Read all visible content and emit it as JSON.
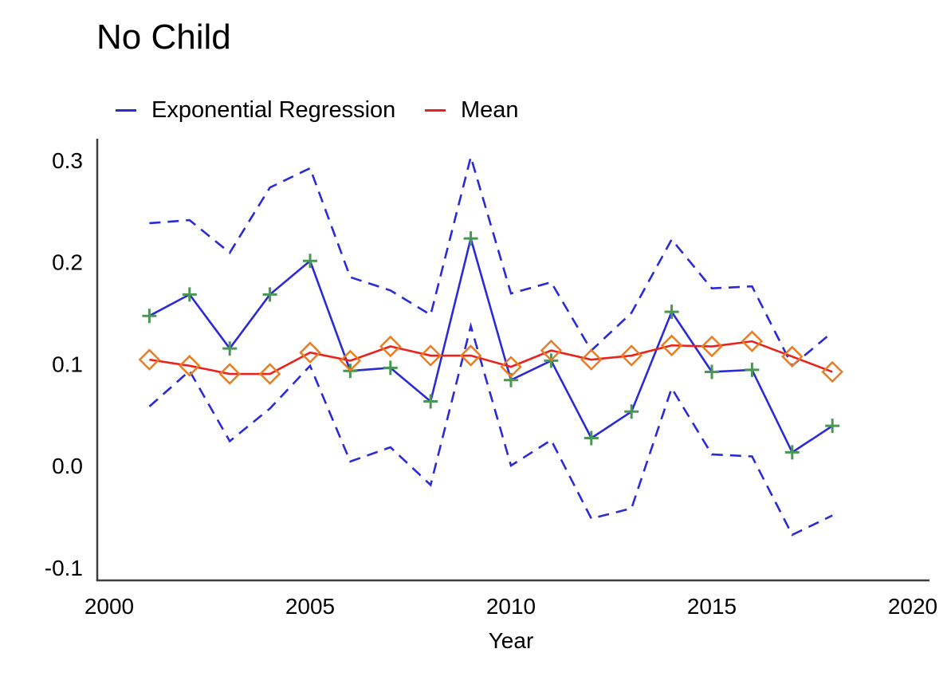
{
  "chart_data": {
    "type": "line",
    "title": "No Child",
    "xlabel": "Year",
    "ylabel": "",
    "x": [
      2001,
      2002,
      2003,
      2004,
      2005,
      2006,
      2007,
      2008,
      2009,
      2010,
      2011,
      2012,
      2013,
      2014,
      2015,
      2016,
      2017,
      2018
    ],
    "series": [
      {
        "name": "Exponential Regression",
        "style": "solid",
        "color": "#2b2bd5",
        "marker": "plus",
        "marker_color": "#4a9655",
        "values": [
          0.147,
          0.168,
          0.115,
          0.168,
          0.201,
          0.093,
          0.096,
          0.063,
          0.223,
          0.084,
          0.103,
          0.027,
          0.053,
          0.151,
          0.092,
          0.094,
          0.013,
          0.039
        ]
      },
      {
        "name": "Mean",
        "style": "solid",
        "color": "#ed211c",
        "marker": "diamond",
        "marker_color": "#e87e23",
        "values": [
          0.104,
          0.098,
          0.09,
          0.09,
          0.111,
          0.103,
          0.117,
          0.108,
          0.108,
          0.097,
          0.113,
          0.104,
          0.108,
          0.118,
          0.117,
          0.122,
          0.107,
          0.092
        ]
      },
      {
        "name": "upper-dashed-band",
        "style": "dashed",
        "color": "#2b2bd5",
        "marker": "none",
        "values": [
          0.238,
          0.241,
          0.209,
          0.273,
          0.292,
          0.185,
          0.172,
          0.148,
          0.303,
          0.169,
          0.18,
          0.113,
          0.15,
          0.222,
          0.174,
          0.176,
          0.098,
          0.131
        ]
      },
      {
        "name": "lower-dashed-band",
        "style": "dashed",
        "color": "#2b2bd5",
        "marker": "none",
        "values": [
          0.058,
          0.093,
          0.024,
          0.056,
          0.098,
          0.004,
          0.018,
          -0.019,
          0.137,
          0.0,
          0.025,
          -0.052,
          -0.042,
          0.076,
          0.011,
          0.009,
          -0.068,
          -0.049
        ]
      }
    ],
    "xlim": [
      2000,
      2020
    ],
    "ylim": [
      -0.13,
      0.32
    ],
    "x_ticks": [
      "2000",
      "2005",
      "2010",
      "2015",
      "2020"
    ],
    "y_ticks": [
      {
        "label": "0.3",
        "value": 0.3
      },
      {
        "label": "0.2",
        "value": 0.2
      },
      {
        "label": "0.1",
        "value": 0.1
      },
      {
        "label": "0.0",
        "value": 0.0
      },
      {
        "label": "-0.1",
        "value": -0.1
      }
    ],
    "grid": false,
    "legend_position": "top",
    "legend": [
      {
        "label": "Exponential Regression",
        "color": "#2b2bd5"
      },
      {
        "label": "Mean",
        "color": "#ed211c"
      }
    ],
    "axis_color": "#3d3d3d"
  }
}
